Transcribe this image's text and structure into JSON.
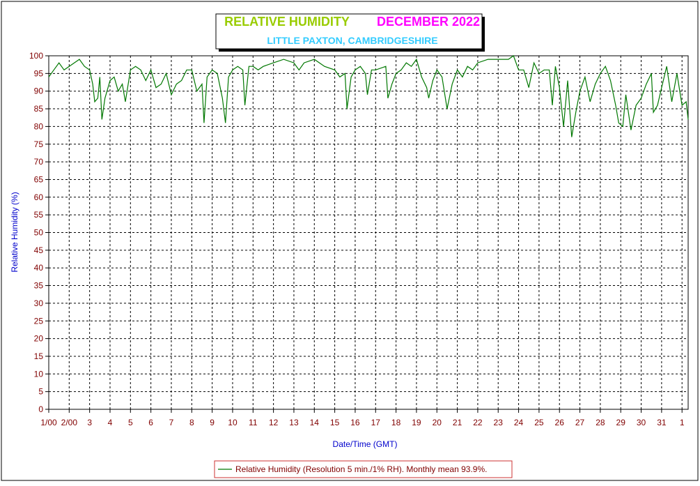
{
  "chart_data": {
    "type": "line",
    "title": "RELATIVE HUMIDITY",
    "title_color": "#99cc00",
    "subtitle": "DECEMBER 2022",
    "subtitle_color": "#ff00ff",
    "location": "LITTLE PAXTON, CAMBRIDGESHIRE",
    "location_color": "#33ccff",
    "x_label": "Date/Time (GMT)",
    "y_label": "Relative Humidity (%)",
    "xlim": [
      1,
      32.3
    ],
    "ylim": [
      0,
      100
    ],
    "xticks": [
      {
        "value": 1,
        "label": "1/00"
      },
      {
        "value": 2,
        "label": "2/00"
      },
      3,
      4,
      5,
      6,
      7,
      8,
      9,
      10,
      11,
      12,
      13,
      14,
      15,
      16,
      17,
      18,
      19,
      20,
      21,
      22,
      23,
      24,
      25,
      26,
      27,
      28,
      29,
      30,
      31,
      {
        "value": 32,
        "label": "1"
      }
    ],
    "yticks": [
      0,
      5,
      10,
      15,
      20,
      25,
      30,
      35,
      40,
      45,
      50,
      55,
      60,
      65,
      70,
      75,
      80,
      85,
      90,
      95,
      100
    ],
    "grid": true,
    "series": [
      {
        "name": "Relative Humidity (Resolution 5 min./1% RH). Monthly mean 93.9%.",
        "color": "#007700",
        "x": [
          1,
          1.25,
          1.5,
          1.75,
          2,
          2.25,
          2.5,
          2.75,
          3,
          3.15,
          3.25,
          3.4,
          3.5,
          3.6,
          3.75,
          4,
          4.2,
          4.4,
          4.6,
          4.75,
          5,
          5.25,
          5.5,
          5.75,
          6,
          6.25,
          6.5,
          6.75,
          7,
          7.25,
          7.5,
          7.75,
          8,
          8.25,
          8.5,
          8.6,
          8.75,
          9,
          9.25,
          9.5,
          9.65,
          9.8,
          10,
          10.25,
          10.5,
          10.6,
          10.8,
          11,
          11.25,
          11.5,
          12,
          12.5,
          13,
          13.25,
          13.5,
          14,
          14.5,
          15,
          15.25,
          15.5,
          15.6,
          15.8,
          16,
          16.25,
          16.5,
          16.6,
          16.8,
          17,
          17.5,
          17.6,
          17.8,
          18,
          18.25,
          18.5,
          18.75,
          19,
          19.25,
          19.5,
          19.6,
          19.8,
          20,
          20.25,
          20.5,
          20.75,
          21,
          21.25,
          21.5,
          21.75,
          22,
          22.5,
          23,
          23.5,
          23.75,
          24,
          24.25,
          24.5,
          24.75,
          25,
          25.25,
          25.5,
          25.65,
          25.8,
          26,
          26.2,
          26.4,
          26.6,
          26.8,
          27,
          27.25,
          27.5,
          27.75,
          28,
          28.25,
          28.5,
          28.75,
          28.9,
          29.1,
          29.25,
          29.5,
          29.75,
          30,
          30.25,
          30.5,
          30.6,
          30.8,
          31,
          31.25,
          31.5,
          31.75,
          32,
          32.2,
          32.3
        ],
        "values": [
          94,
          96,
          98,
          96,
          97,
          98,
          99,
          97,
          96,
          92,
          87,
          88,
          94,
          82,
          88,
          93,
          94,
          90,
          92,
          87,
          96,
          97,
          96,
          93,
          96,
          91,
          92,
          95,
          89,
          92,
          93,
          96,
          96,
          90,
          92,
          81,
          94,
          96,
          95,
          88,
          81,
          94,
          96,
          97,
          96,
          86,
          97,
          97,
          96,
          97,
          98,
          99,
          98,
          96,
          98,
          99,
          97,
          96,
          94,
          95,
          85,
          94,
          96,
          97,
          95,
          89,
          96,
          96,
          97,
          88,
          92,
          95,
          96,
          98,
          97,
          99,
          94,
          91,
          88,
          93,
          96,
          94,
          85,
          92,
          96,
          94,
          97,
          96,
          98,
          99,
          99,
          99,
          100,
          96,
          96,
          91,
          98,
          95,
          96,
          96,
          86,
          97,
          91,
          80,
          93,
          77,
          84,
          90,
          94,
          87,
          92,
          95,
          97,
          93,
          86,
          81,
          80,
          89,
          79,
          86,
          88,
          92,
          95,
          84,
          86,
          91,
          97,
          87,
          95,
          86,
          87,
          82
        ]
      }
    ]
  }
}
